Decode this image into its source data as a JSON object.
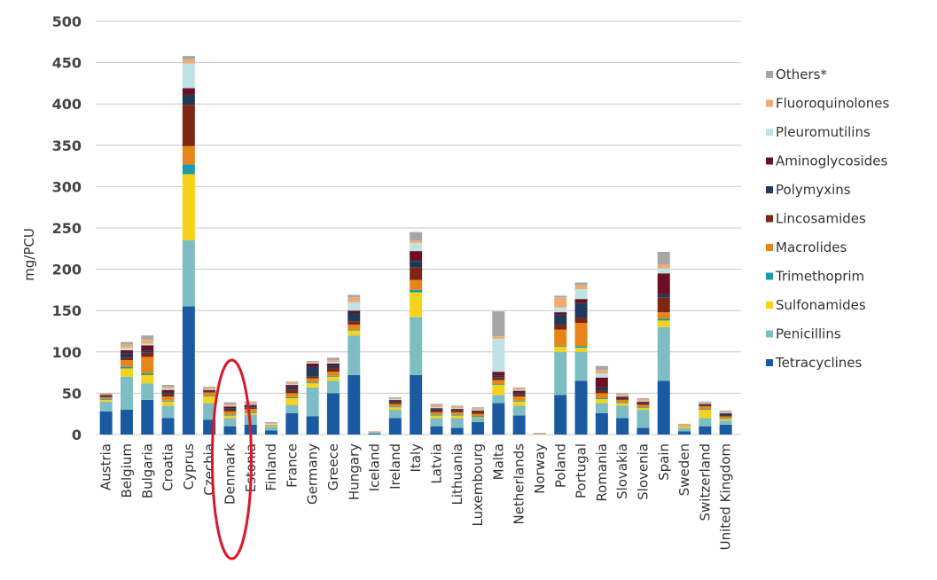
{
  "chart_data": {
    "type": "bar",
    "stacked": true,
    "ylabel": "mg/PCU",
    "ylim": [
      0,
      500
    ],
    "yticks": [
      "0",
      "50",
      "100",
      "150",
      "200",
      "250",
      "300",
      "350",
      "400",
      "450",
      "500"
    ],
    "grid": true,
    "legend_position": "right",
    "highlight": "Denmark",
    "categories": [
      "Austria",
      "Belgium",
      "Bulgaria",
      "Croatia",
      "Cyprus",
      "Czechia",
      "Denmark",
      "Estonia",
      "Finland",
      "France",
      "Germany",
      "Greece",
      "Hungary",
      "Iceland",
      "Ireland",
      "Italy",
      "Latvia",
      "Lithuania",
      "Luxembourg",
      "Malta",
      "Netherlands",
      "Norway",
      "Poland",
      "Portugal",
      "Romania",
      "Slovakia",
      "Slovenia",
      "Spain",
      "Sweden",
      "Switzerland",
      "United Kingdom"
    ],
    "series": [
      {
        "name": "Tetracyclines",
        "color": "#1a5aa0",
        "values": [
          28,
          30,
          42,
          20,
          155,
          18,
          10,
          12,
          5,
          26,
          22,
          50,
          72,
          1,
          20,
          72,
          10,
          8,
          15,
          38,
          23,
          0,
          48,
          65,
          26,
          20,
          8,
          65,
          4,
          10,
          12
        ]
      },
      {
        "name": "Penicillins",
        "color": "#7fbdc4",
        "values": [
          12,
          40,
          20,
          15,
          80,
          20,
          10,
          12,
          5,
          10,
          35,
          15,
          48,
          2,
          10,
          70,
          10,
          12,
          5,
          10,
          12,
          0,
          52,
          35,
          12,
          15,
          22,
          65,
          4,
          10,
          5
        ]
      },
      {
        "name": "Sulfonamides",
        "color": "#f6d31b",
        "values": [
          2,
          10,
          10,
          5,
          80,
          8,
          3,
          2,
          1,
          8,
          5,
          5,
          6,
          0,
          3,
          30,
          3,
          3,
          1,
          12,
          5,
          0,
          6,
          5,
          5,
          3,
          2,
          8,
          2,
          10,
          2
        ]
      },
      {
        "name": "Trimethoprim",
        "color": "#1b9ca8",
        "values": [
          1,
          2,
          2,
          1,
          12,
          1,
          1,
          1,
          0,
          1,
          1,
          1,
          1,
          0,
          1,
          3,
          1,
          1,
          1,
          1,
          1,
          0,
          1,
          2,
          1,
          1,
          1,
          2,
          0,
          1,
          1
        ]
      },
      {
        "name": "Macrolides",
        "color": "#e6861a",
        "values": [
          2,
          8,
          20,
          5,
          22,
          4,
          4,
          4,
          1,
          5,
          5,
          5,
          6,
          0,
          3,
          12,
          3,
          3,
          3,
          5,
          5,
          0,
          20,
          28,
          6,
          3,
          3,
          8,
          1,
          3,
          2
        ]
      },
      {
        "name": "Lincosamides",
        "color": "#7d2613",
        "values": [
          1,
          3,
          5,
          3,
          50,
          1,
          2,
          2,
          0,
          4,
          2,
          4,
          4,
          0,
          2,
          15,
          2,
          2,
          2,
          3,
          3,
          0,
          6,
          6,
          3,
          2,
          2,
          18,
          0,
          1,
          1
        ]
      },
      {
        "name": "Polymyxins",
        "color": "#1d3a5a",
        "values": [
          1,
          5,
          2,
          2,
          12,
          1,
          2,
          2,
          0,
          3,
          12,
          3,
          10,
          0,
          2,
          8,
          2,
          1,
          1,
          2,
          2,
          0,
          12,
          18,
          4,
          1,
          1,
          4,
          0,
          1,
          2
        ]
      },
      {
        "name": "Aminoglycosides",
        "color": "#6b1023",
        "values": [
          1,
          4,
          7,
          3,
          8,
          1,
          2,
          1,
          0,
          3,
          4,
          3,
          3,
          0,
          1,
          12,
          1,
          1,
          1,
          5,
          2,
          0,
          3,
          5,
          12,
          1,
          1,
          25,
          0,
          1,
          1
        ]
      },
      {
        "name": "Pleuromutilins",
        "color": "#bfe2e5",
        "values": [
          0,
          3,
          2,
          2,
          30,
          1,
          1,
          1,
          1,
          1,
          1,
          2,
          10,
          0,
          1,
          10,
          1,
          1,
          1,
          40,
          1,
          0,
          6,
          12,
          5,
          1,
          1,
          6,
          0,
          1,
          1
        ]
      },
      {
        "name": "Fluoroquinolones",
        "color": "#eeab74",
        "values": [
          1,
          4,
          5,
          2,
          5,
          2,
          2,
          2,
          1,
          2,
          1,
          2,
          6,
          1,
          1,
          3,
          2,
          2,
          2,
          3,
          2,
          1,
          12,
          5,
          4,
          2,
          2,
          5,
          1,
          1,
          1
        ]
      },
      {
        "name": "Others*",
        "color": "#a6a6a6",
        "values": [
          1,
          3,
          5,
          2,
          4,
          1,
          2,
          1,
          1,
          1,
          1,
          3,
          3,
          0,
          1,
          10,
          2,
          1,
          1,
          30,
          1,
          1,
          2,
          3,
          5,
          1,
          1,
          15,
          1,
          1,
          1
        ]
      }
    ]
  }
}
